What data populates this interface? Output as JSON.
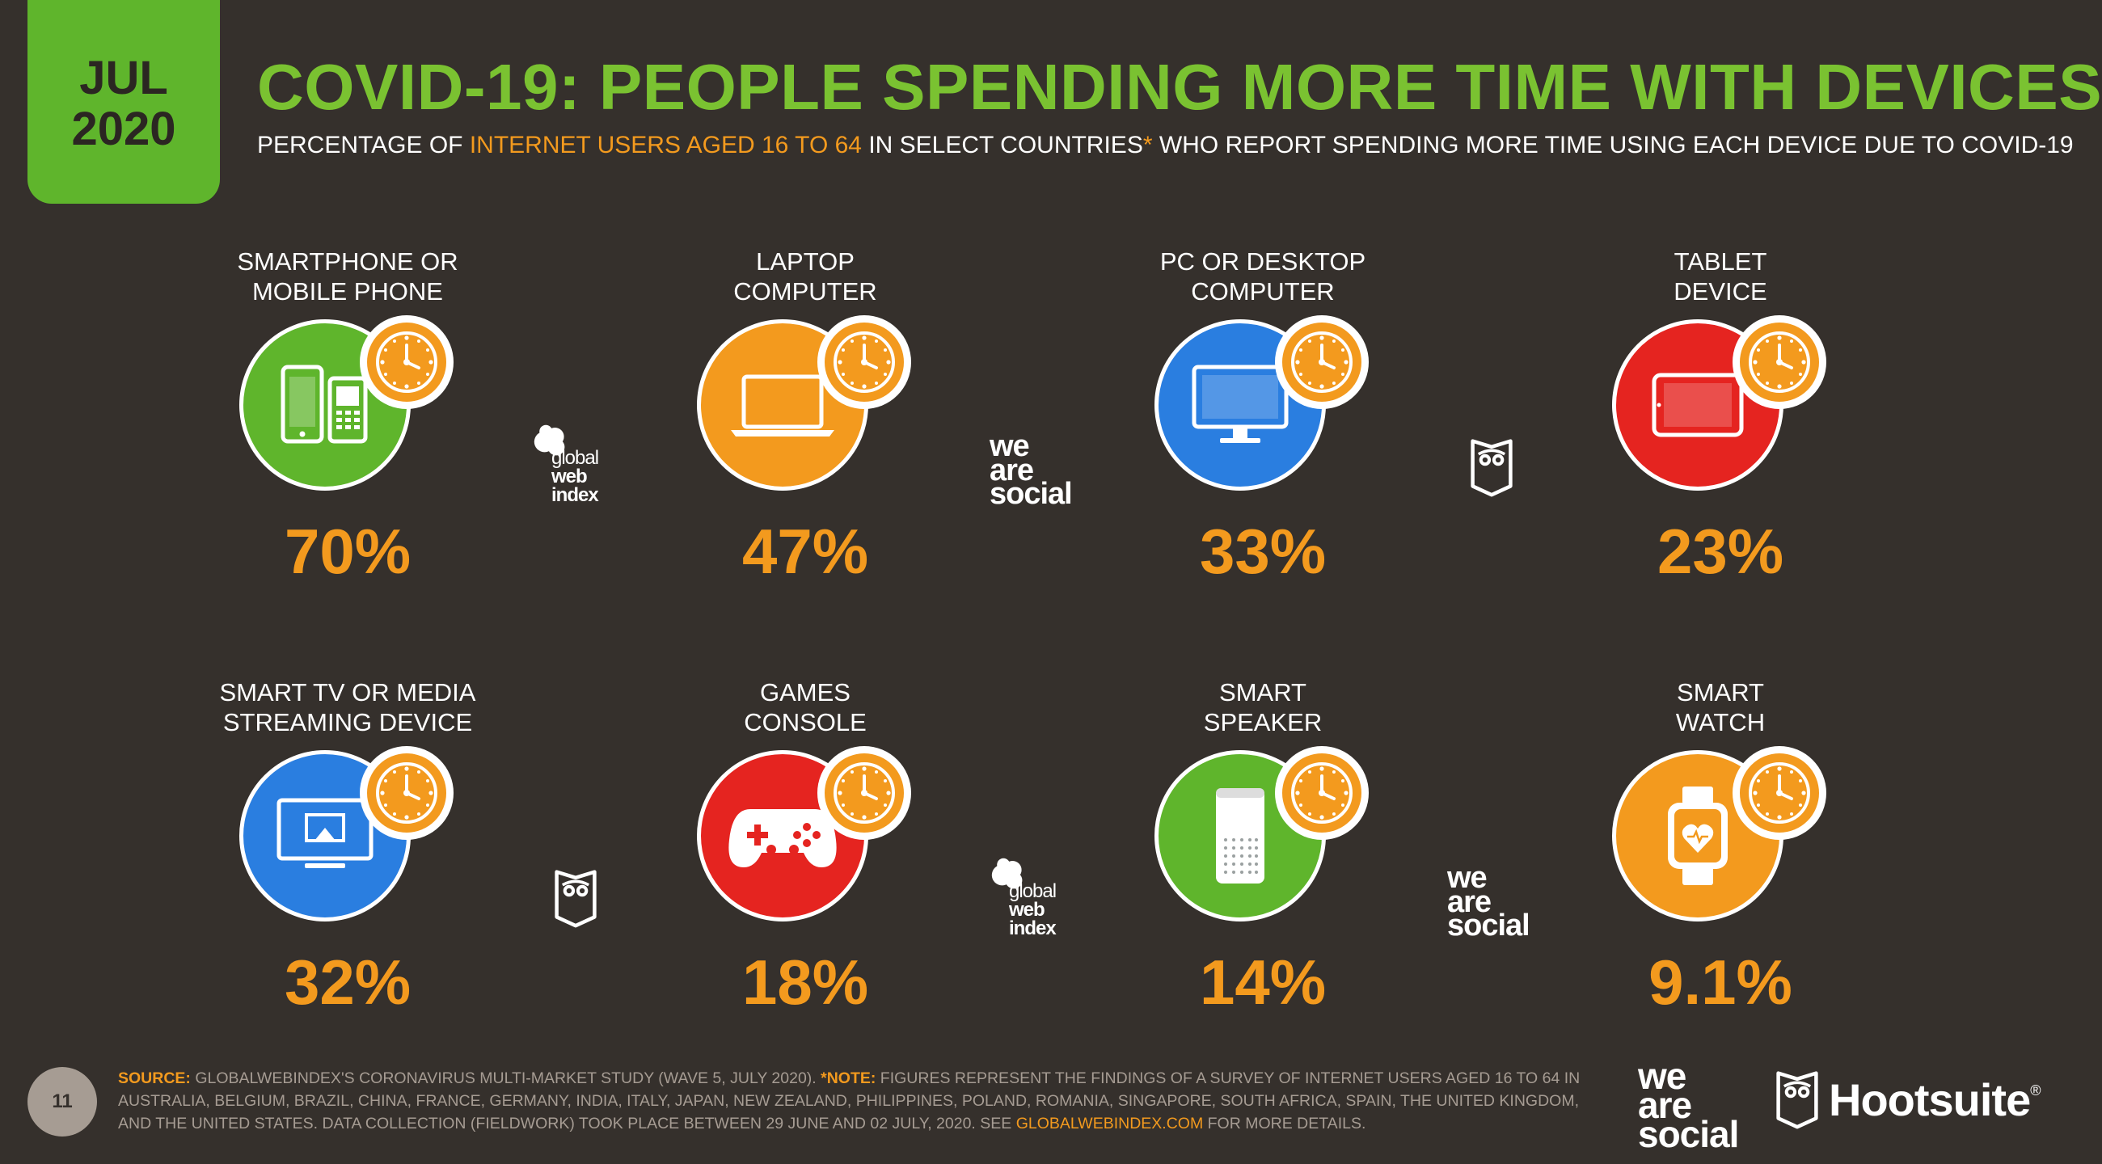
{
  "badge": {
    "month": "JUL",
    "year": "2020"
  },
  "title": "COVID-19: PEOPLE SPENDING MORE TIME WITH DEVICES",
  "subtitle": {
    "part1": "PERCENTAGE OF ",
    "highlight1": "INTERNET USERS AGED 16 TO 64",
    "part2": " IN SELECT COUNTRIES",
    "asterisk": "*",
    "part3": " WHO REPORT SPENDING MORE TIME USING EACH DEVICE DUE TO COVID-19"
  },
  "colors": {
    "green": "#5fb52c",
    "orange": "#f39a1e",
    "blue": "#2a7ee0",
    "red": "#e52420"
  },
  "devices": [
    {
      "line1": "SMARTPHONE OR",
      "line2": "MOBILE PHONE",
      "value": "70%",
      "icon": "smartphone-icon",
      "color": "#5fb52c"
    },
    {
      "line1": "LAPTOP",
      "line2": "COMPUTER",
      "value": "47%",
      "icon": "laptop-icon",
      "color": "#f39a1e"
    },
    {
      "line1": "PC OR DESKTOP",
      "line2": "COMPUTER",
      "value": "33%",
      "icon": "desktop-icon",
      "color": "#2a7ee0"
    },
    {
      "line1": "TABLET",
      "line2": "DEVICE",
      "value": "23%",
      "icon": "tablet-icon",
      "color": "#e52420"
    },
    {
      "line1": "SMART TV OR MEDIA",
      "line2": "STREAMING DEVICE",
      "value": "32%",
      "icon": "tv-icon",
      "color": "#2a7ee0"
    },
    {
      "line1": "GAMES",
      "line2": "CONSOLE",
      "value": "18%",
      "icon": "gamepad-icon",
      "color": "#e52420"
    },
    {
      "line1": "SMART",
      "line2": "SPEAKER",
      "value": "14%",
      "icon": "smart-speaker-icon",
      "color": "#5fb52c"
    },
    {
      "line1": "SMART",
      "line2": "WATCH",
      "value": "9.1%",
      "icon": "smartwatch-icon",
      "color": "#f39a1e"
    }
  ],
  "logos": {
    "gwi": {
      "line1": "global",
      "line2": "web",
      "line3": "index"
    },
    "wrs": {
      "line1": "we",
      "line2": "are",
      "line3": "social"
    },
    "hootsuite": "Hootsuite",
    "registered": "®"
  },
  "page_number": "11",
  "footnote": {
    "source_label": "SOURCE:",
    "source_text": " GLOBALWEBINDEX'S CORONAVIRUS MULTI-MARKET STUDY (WAVE 5, JULY 2020). ",
    "note_label": "*NOTE:",
    "note_text": " FIGURES REPRESENT THE FINDINGS OF A SURVEY OF INTERNET USERS AGED 16 TO 64 IN AUSTRALIA, BELGIUM, BRAZIL, CHINA, FRANCE, GERMANY, INDIA, ITALY, JAPAN, NEW ZEALAND, PHILIPPINES, POLAND, ROMANIA, SINGAPORE, SOUTH AFRICA, SPAIN, THE UNITED KINGDOM, AND THE UNITED STATES. DATA COLLECTION (FIELDWORK) TOOK PLACE BETWEEN 29 JUNE AND 02 JULY, 2020. SEE ",
    "link": "GLOBALWEBINDEX.COM",
    "tail": " FOR MORE DETAILS."
  }
}
